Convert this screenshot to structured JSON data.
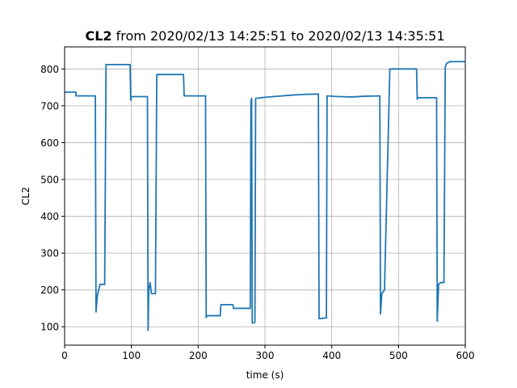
{
  "chart_data": {
    "type": "line",
    "title": {
      "bold_part": "CL2",
      "rest": " from 2020/02/13 14:25:51 to 2020/02/13 14:35:51"
    },
    "xlabel": "time (s)",
    "ylabel": "CL2",
    "xlim": [
      0,
      600
    ],
    "ylim": [
      50,
      860
    ],
    "x_ticks": [
      0,
      100,
      200,
      300,
      400,
      500,
      600
    ],
    "y_ticks": [
      100,
      200,
      300,
      400,
      500,
      600,
      700,
      800
    ],
    "grid": true,
    "legend": "none",
    "series": [
      {
        "color": "#1f77b4",
        "points": [
          [
            0,
            737
          ],
          [
            17,
            737
          ],
          [
            17,
            727
          ],
          [
            46,
            727
          ],
          [
            47,
            140
          ],
          [
            49,
            185
          ],
          [
            51,
            200
          ],
          [
            53,
            215
          ],
          [
            60,
            215
          ],
          [
            62,
            812
          ],
          [
            98,
            812
          ],
          [
            99,
            715
          ],
          [
            100,
            725
          ],
          [
            124,
            725
          ],
          [
            125,
            90
          ],
          [
            126,
            200
          ],
          [
            128,
            220
          ],
          [
            130,
            190
          ],
          [
            136,
            190
          ],
          [
            138,
            785
          ],
          [
            178,
            785
          ],
          [
            179,
            727
          ],
          [
            211,
            727
          ],
          [
            212,
            125
          ],
          [
            213,
            130
          ],
          [
            233,
            130
          ],
          [
            234,
            160
          ],
          [
            252,
            160
          ],
          [
            253,
            150
          ],
          [
            278,
            150
          ],
          [
            279,
            712
          ],
          [
            280,
            720
          ],
          [
            281,
            110
          ],
          [
            285,
            112
          ],
          [
            286,
            720
          ],
          [
            300,
            723
          ],
          [
            320,
            726
          ],
          [
            340,
            729
          ],
          [
            360,
            731
          ],
          [
            380,
            732
          ],
          [
            381,
            122
          ],
          [
            392,
            124
          ],
          [
            393,
            727
          ],
          [
            410,
            725
          ],
          [
            430,
            724
          ],
          [
            450,
            726
          ],
          [
            472,
            727
          ],
          [
            473,
            135
          ],
          [
            475,
            190
          ],
          [
            479,
            200
          ],
          [
            487,
            800
          ],
          [
            527,
            800
          ],
          [
            528,
            718
          ],
          [
            529,
            722
          ],
          [
            557,
            722
          ],
          [
            558,
            115
          ],
          [
            560,
            215
          ],
          [
            563,
            220
          ],
          [
            568,
            220
          ],
          [
            570,
            805
          ],
          [
            572,
            815
          ],
          [
            577,
            820
          ],
          [
            600,
            820
          ]
        ]
      }
    ]
  }
}
